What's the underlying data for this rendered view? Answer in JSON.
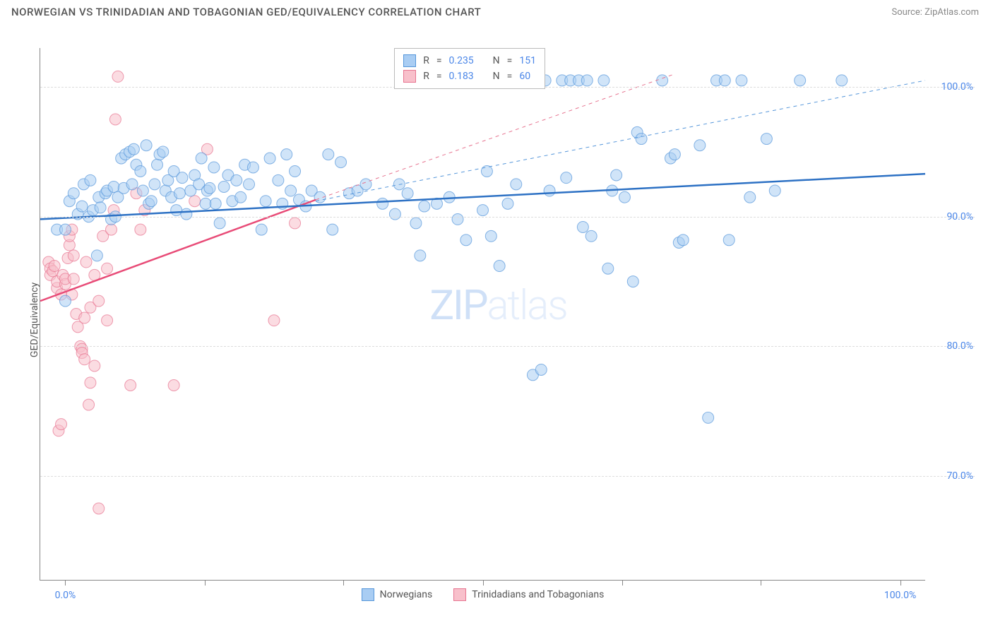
{
  "title": "NORWEGIAN VS TRINIDADIAN AND TOBAGONIAN GED/EQUIVALENCY CORRELATION CHART",
  "source": "Source: ZipAtlas.com",
  "ylabel": "GED/Equivalency",
  "watermark_a": "ZIP",
  "watermark_b": "atlas",
  "xlim": [
    -3,
    103
  ],
  "ylim": [
    62,
    103
  ],
  "ytick_labels": [
    "70.0%",
    "80.0%",
    "90.0%",
    "100.0%"
  ],
  "ytick_vals": [
    70,
    80,
    90,
    100
  ],
  "xtick_positions": [
    0,
    16.67,
    33.33,
    50,
    66.67,
    83.33,
    100
  ],
  "xtick_labels_shown": {
    "0": "0.0%",
    "6": "100.0%"
  },
  "colors": {
    "blue_fill": "#a9cdf3",
    "blue_stroke": "#5596da",
    "blue_line": "#2d71c4",
    "pink_fill": "#f8c0cb",
    "pink_stroke": "#e77490",
    "pink_line": "#e84b77",
    "grid": "#dddddd",
    "axis": "#888888"
  },
  "legend": {
    "r_label": "R",
    "n_label": "N",
    "eq": "=",
    "series": [
      {
        "swatch_fill": "#a9cdf3",
        "swatch_stroke": "#5596da",
        "r": "0.235",
        "n": "151"
      },
      {
        "swatch_fill": "#f8c0cb",
        "swatch_stroke": "#e77490",
        "r": "0.183",
        "n": "60"
      }
    ]
  },
  "bottom_legend": [
    {
      "swatch_fill": "#a9cdf3",
      "swatch_stroke": "#5596da",
      "label": "Norwegians"
    },
    {
      "swatch_fill": "#f8c0cb",
      "swatch_stroke": "#e77490",
      "label": "Trinidadians and Tobagonians"
    }
  ],
  "series_blue": {
    "trend_x": [
      -3,
      103
    ],
    "trend_y": [
      89.8,
      93.3
    ],
    "trend_dash_x": [
      30,
      103
    ],
    "trend_dash_y": [
      91.2,
      100.5
    ],
    "points": [
      [
        -1,
        89
      ],
      [
        0,
        83.5
      ],
      [
        0,
        89
      ],
      [
        0.5,
        91.2
      ],
      [
        1,
        91.8
      ],
      [
        1.5,
        90.2
      ],
      [
        2,
        90.8
      ],
      [
        2.2,
        92.5
      ],
      [
        2.8,
        90
      ],
      [
        3,
        92.8
      ],
      [
        3.3,
        90.5
      ],
      [
        3.8,
        87
      ],
      [
        4,
        91.5
      ],
      [
        4.2,
        90.7
      ],
      [
        4.8,
        91.8
      ],
      [
        5,
        92
      ],
      [
        5.5,
        89.8
      ],
      [
        5.8,
        92.3
      ],
      [
        6,
        90
      ],
      [
        6.3,
        91.5
      ],
      [
        6.7,
        94.5
      ],
      [
        7,
        92.2
      ],
      [
        7.2,
        94.8
      ],
      [
        7.7,
        95
      ],
      [
        8,
        92.5
      ],
      [
        8.2,
        95.2
      ],
      [
        8.5,
        94
      ],
      [
        9,
        93.5
      ],
      [
        9.3,
        92
      ],
      [
        9.7,
        95.5
      ],
      [
        10,
        91
      ],
      [
        10.3,
        91.2
      ],
      [
        10.7,
        92.5
      ],
      [
        11,
        94
      ],
      [
        11.3,
        94.8
      ],
      [
        11.7,
        95
      ],
      [
        12,
        92
      ],
      [
        12.3,
        92.8
      ],
      [
        12.7,
        91.5
      ],
      [
        13,
        93.5
      ],
      [
        13.3,
        90.5
      ],
      [
        13.7,
        91.8
      ],
      [
        14,
        93
      ],
      [
        14.5,
        90.2
      ],
      [
        15,
        92
      ],
      [
        15.5,
        93.2
      ],
      [
        16,
        92.5
      ],
      [
        16.3,
        94.5
      ],
      [
        16.8,
        91
      ],
      [
        17,
        92
      ],
      [
        17.3,
        92.2
      ],
      [
        17.8,
        93.8
      ],
      [
        18,
        91
      ],
      [
        18.5,
        89.5
      ],
      [
        19,
        92.3
      ],
      [
        19.5,
        93.2
      ],
      [
        20,
        91.2
      ],
      [
        20.5,
        92.8
      ],
      [
        21,
        91.5
      ],
      [
        21.5,
        94
      ],
      [
        22,
        92.5
      ],
      [
        22.5,
        93.8
      ],
      [
        23.5,
        89
      ],
      [
        24,
        91.2
      ],
      [
        24.5,
        94.5
      ],
      [
        25.5,
        92.8
      ],
      [
        26,
        91
      ],
      [
        26.5,
        94.8
      ],
      [
        27,
        92
      ],
      [
        27.5,
        93.5
      ],
      [
        28,
        91.3
      ],
      [
        28.8,
        90.8
      ],
      [
        29.5,
        92
      ],
      [
        30.5,
        91.5
      ],
      [
        31.5,
        94.8
      ],
      [
        32,
        89
      ],
      [
        33,
        94.2
      ],
      [
        34,
        91.8
      ],
      [
        35,
        92
      ],
      [
        36,
        92.5
      ],
      [
        38,
        91
      ],
      [
        39.5,
        90.2
      ],
      [
        40,
        92.5
      ],
      [
        41,
        91.8
      ],
      [
        42,
        89.5
      ],
      [
        42.5,
        87
      ],
      [
        43,
        90.8
      ],
      [
        44.5,
        91
      ],
      [
        46,
        91.5
      ],
      [
        47,
        89.8
      ],
      [
        48,
        88.2
      ],
      [
        50,
        90.5
      ],
      [
        50.5,
        93.5
      ],
      [
        51,
        88.5
      ],
      [
        52,
        86.2
      ],
      [
        53,
        91
      ],
      [
        54,
        92.5
      ],
      [
        56,
        77.8
      ],
      [
        57,
        78.2
      ],
      [
        57.5,
        100.5
      ],
      [
        58,
        92
      ],
      [
        59.5,
        100.5
      ],
      [
        60,
        93
      ],
      [
        60.5,
        100.5
      ],
      [
        61.5,
        100.5
      ],
      [
        62,
        89.2
      ],
      [
        62.5,
        100.5
      ],
      [
        63,
        88.5
      ],
      [
        64.5,
        100.5
      ],
      [
        65,
        86
      ],
      [
        65.5,
        92
      ],
      [
        66,
        93.2
      ],
      [
        67,
        91.5
      ],
      [
        68,
        85
      ],
      [
        68.5,
        96.5
      ],
      [
        69,
        96
      ],
      [
        71.5,
        100.5
      ],
      [
        72.5,
        94.5
      ],
      [
        73,
        94.8
      ],
      [
        73.5,
        88
      ],
      [
        74,
        88.2
      ],
      [
        76,
        95.5
      ],
      [
        77,
        74.5
      ],
      [
        78,
        100.5
      ],
      [
        79,
        100.5
      ],
      [
        79.5,
        88.2
      ],
      [
        81,
        100.5
      ],
      [
        82,
        91.5
      ],
      [
        84,
        96
      ],
      [
        85,
        92
      ],
      [
        88,
        100.5
      ],
      [
        93,
        100.5
      ]
    ]
  },
  "series_pink": {
    "trend_x": [
      -3,
      30
    ],
    "trend_y": [
      83.5,
      91.3
    ],
    "trend_dash_x": [
      30,
      73
    ],
    "trend_dash_y": [
      91.3,
      101
    ],
    "points": [
      [
        -2,
        86.5
      ],
      [
        -1.8,
        86
      ],
      [
        -1.8,
        85.5
      ],
      [
        -1.5,
        85.8
      ],
      [
        -1.3,
        86.2
      ],
      [
        -1,
        84.5
      ],
      [
        -1,
        85
      ],
      [
        -0.8,
        73.5
      ],
      [
        -0.5,
        74
      ],
      [
        -0.5,
        84
      ],
      [
        -0.3,
        85.5
      ],
      [
        0,
        84.8
      ],
      [
        0,
        85.2
      ],
      [
        0.3,
        86.8
      ],
      [
        0.5,
        87.8
      ],
      [
        0.5,
        88.5
      ],
      [
        0.8,
        89
      ],
      [
        0.8,
        84
      ],
      [
        1,
        85.2
      ],
      [
        1,
        87
      ],
      [
        1.3,
        82.5
      ],
      [
        1.5,
        81.5
      ],
      [
        1.8,
        80
      ],
      [
        2,
        79.8
      ],
      [
        2,
        79.5
      ],
      [
        2.3,
        79
      ],
      [
        2.3,
        82.2
      ],
      [
        2.5,
        86.5
      ],
      [
        2.8,
        75.5
      ],
      [
        3,
        83
      ],
      [
        3,
        77.2
      ],
      [
        3.5,
        85.5
      ],
      [
        3.5,
        78.5
      ],
      [
        4,
        83.5
      ],
      [
        4,
        67.5
      ],
      [
        4.5,
        88.5
      ],
      [
        5,
        86
      ],
      [
        5,
        82
      ],
      [
        5.5,
        89
      ],
      [
        5.8,
        90.5
      ],
      [
        6,
        97.5
      ],
      [
        6.3,
        100.8
      ],
      [
        7.8,
        77
      ],
      [
        8.5,
        91.8
      ],
      [
        9,
        89
      ],
      [
        9.5,
        90.5
      ],
      [
        13,
        77
      ],
      [
        15.5,
        91.2
      ],
      [
        17,
        95.2
      ],
      [
        25,
        82
      ],
      [
        27.5,
        89.5
      ]
    ]
  },
  "marker_radius": 8,
  "marker_opacity": 0.55,
  "line_width_solid": 2.5,
  "line_width_dash": 1
}
